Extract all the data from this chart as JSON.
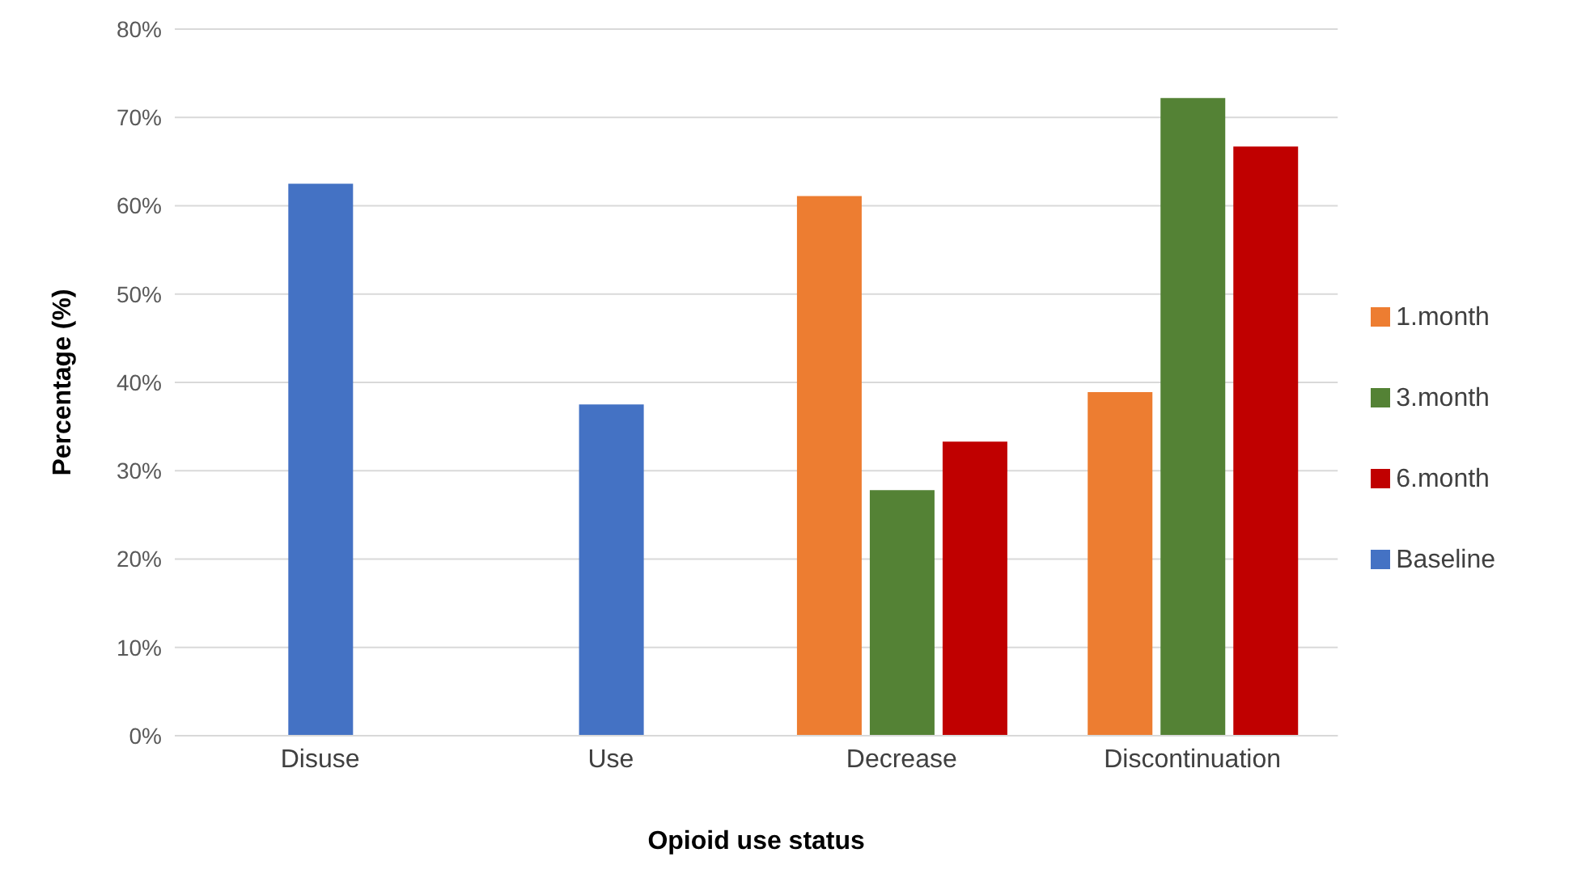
{
  "chart_data": {
    "type": "bar",
    "xlabel": "Opioid use status",
    "ylabel": "Percentage (%)",
    "categories": [
      "Disuse",
      "Use",
      "Decrease",
      "Discontinuation"
    ],
    "series": [
      {
        "name": "1.month",
        "color": "#ed7d31",
        "values": [
          null,
          null,
          61.1,
          38.9
        ]
      },
      {
        "name": "3.month",
        "color": "#548235",
        "values": [
          null,
          null,
          27.8,
          72.2
        ]
      },
      {
        "name": "6.month",
        "color": "#c00000",
        "values": [
          null,
          null,
          33.3,
          66.7
        ]
      },
      {
        "name": "Baseline",
        "color": "#4472c4",
        "values": [
          62.5,
          37.5,
          null,
          null
        ]
      }
    ],
    "ylim": [
      0,
      80
    ],
    "yticks": [
      {
        "value": 0,
        "label": "0%"
      },
      {
        "value": 10,
        "label": "10%"
      },
      {
        "value": 20,
        "label": "20%"
      },
      {
        "value": 30,
        "label": "30%"
      },
      {
        "value": 40,
        "label": "40%"
      },
      {
        "value": 50,
        "label": "50%"
      },
      {
        "value": 60,
        "label": "60%"
      },
      {
        "value": 70,
        "label": "70%"
      },
      {
        "value": 80,
        "label": "80%"
      }
    ],
    "grid": "y",
    "legend": "right"
  }
}
